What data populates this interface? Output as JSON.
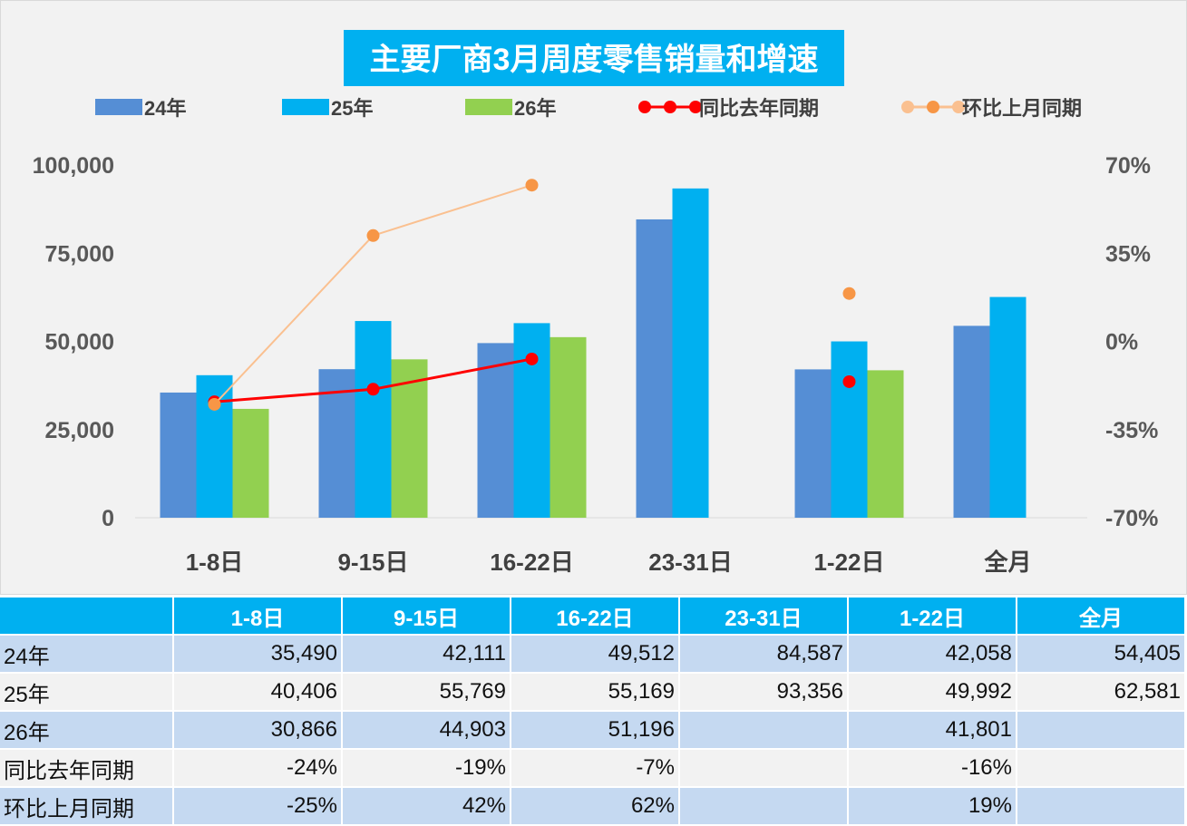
{
  "chart_data": {
    "type": "bar",
    "title": "主要厂商3月周度零售销量和增速",
    "categories": [
      "1-8日",
      "9-15日",
      "16-22日",
      "23-31日",
      "1-22日",
      "全月"
    ],
    "series": [
      {
        "name": "24年",
        "kind": "bar",
        "axis": "left",
        "color": "#558ed5",
        "values": [
          35490,
          42111,
          49512,
          84587,
          42058,
          54405
        ]
      },
      {
        "name": "25年",
        "kind": "bar",
        "axis": "left",
        "color": "#00b0f0",
        "values": [
          40406,
          55769,
          55169,
          93356,
          49992,
          62581
        ]
      },
      {
        "name": "26年",
        "kind": "bar",
        "axis": "left",
        "color": "#92d050",
        "values": [
          30866,
          44903,
          51196,
          null,
          41801,
          null
        ]
      },
      {
        "name": "同比去年同期",
        "kind": "line",
        "axis": "right",
        "color": "#ff0000",
        "values": [
          -24,
          -19,
          -7,
          null,
          -16,
          null
        ]
      },
      {
        "name": "环比上月同期",
        "kind": "line",
        "axis": "right",
        "color": "#f79646",
        "line_color": "#fac090",
        "values": [
          -25,
          42,
          62,
          null,
          19,
          null
        ]
      }
    ],
    "y_left": {
      "ylim": [
        0,
        100000
      ],
      "ticks": [
        "0",
        "25,000",
        "50,000",
        "75,000",
        "100,000"
      ]
    },
    "y_right": {
      "ylim": [
        -70,
        70
      ],
      "ticks": [
        "-70%",
        "-35%",
        "0%",
        "35%",
        "70%"
      ]
    },
    "legend": "top",
    "grid": false
  },
  "table": {
    "header": [
      "",
      "1-8日",
      "9-15日",
      "16-22日",
      "23-31日",
      "1-22日",
      "全月"
    ],
    "rows": [
      [
        "24年",
        "35,490",
        "42,111",
        "49,512",
        "84,587",
        "42,058",
        "54,405"
      ],
      [
        "25年",
        "40,406",
        "55,769",
        "55,169",
        "93,356",
        "49,992",
        "62,581"
      ],
      [
        "26年",
        "30,866",
        "44,903",
        "51,196",
        "",
        "41,801",
        ""
      ],
      [
        "同比去年同期",
        "-24%",
        "-19%",
        "-7%",
        "",
        "-16%",
        ""
      ],
      [
        "环比上月同期",
        "-25%",
        "42%",
        "62%",
        "",
        "19%",
        ""
      ]
    ]
  }
}
